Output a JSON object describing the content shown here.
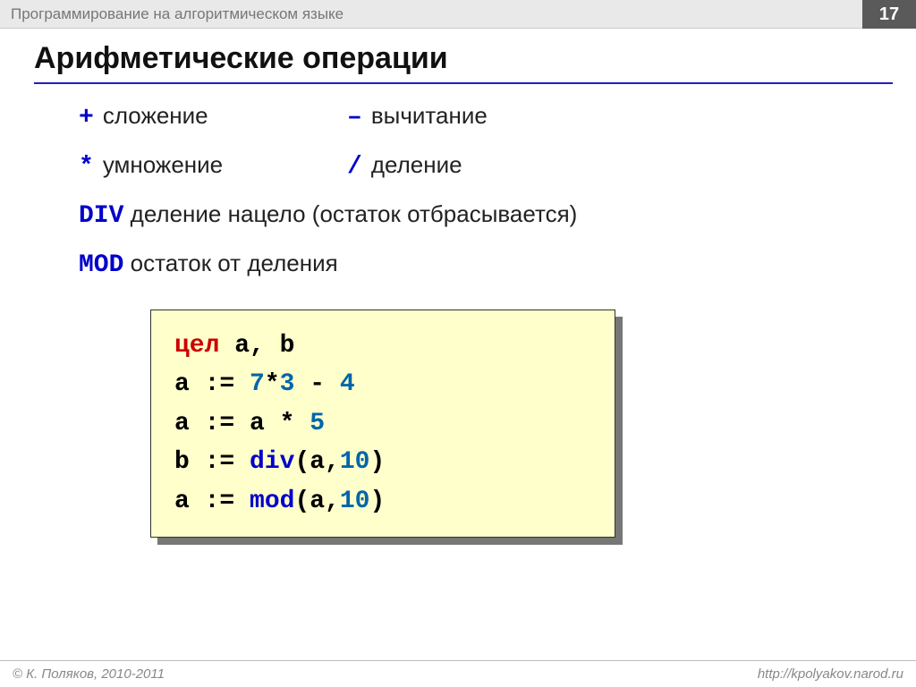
{
  "header": {
    "course": "Программирование на алгоритмическом языке",
    "page_number": "17"
  },
  "title": "Арифметические операции",
  "ops": {
    "plus": {
      "symbol": "+",
      "desc": "сложение"
    },
    "minus": {
      "symbol": "–",
      "desc": "вычитание"
    },
    "mul": {
      "symbol": "*",
      "desc": "умножение"
    },
    "divs": {
      "symbol": "/",
      "desc": "деление"
    },
    "div": {
      "keyword": "DIV",
      "desc": "деление нацело (остаток отбрасывается)"
    },
    "mod": {
      "keyword": "MOD",
      "desc": "остаток от деления"
    }
  },
  "code": {
    "l1_kw": "цел",
    "l1_rest": " a, b",
    "l2_a": "a := ",
    "l2_n1": "7",
    "l2_op1": "*",
    "l2_n2": "3",
    "l2_op2": " - ",
    "l2_n3": "4",
    "l3_a": "a := a * ",
    "l3_n1": "5",
    "l4_a": "b := ",
    "l4_fn": "div",
    "l4_open": "(a,",
    "l4_n": "10",
    "l4_close": ")",
    "l5_a": "a := ",
    "l5_fn": "mod",
    "l5_open": "(a,",
    "l5_n": "10",
    "l5_close": ")"
  },
  "footer": {
    "copyright": "© К. Поляков, 2010-2011",
    "url": "http://kpolyakov.narod.ru"
  },
  "colors": {
    "keyword_blue": "#0000cc",
    "number_teal": "#0066aa",
    "keyword_red": "#cc0000",
    "code_bg": "#ffffcc",
    "header_bg": "#e9e9e9",
    "pagebox_bg": "#5a5a5a",
    "rule": "#2020c0"
  }
}
